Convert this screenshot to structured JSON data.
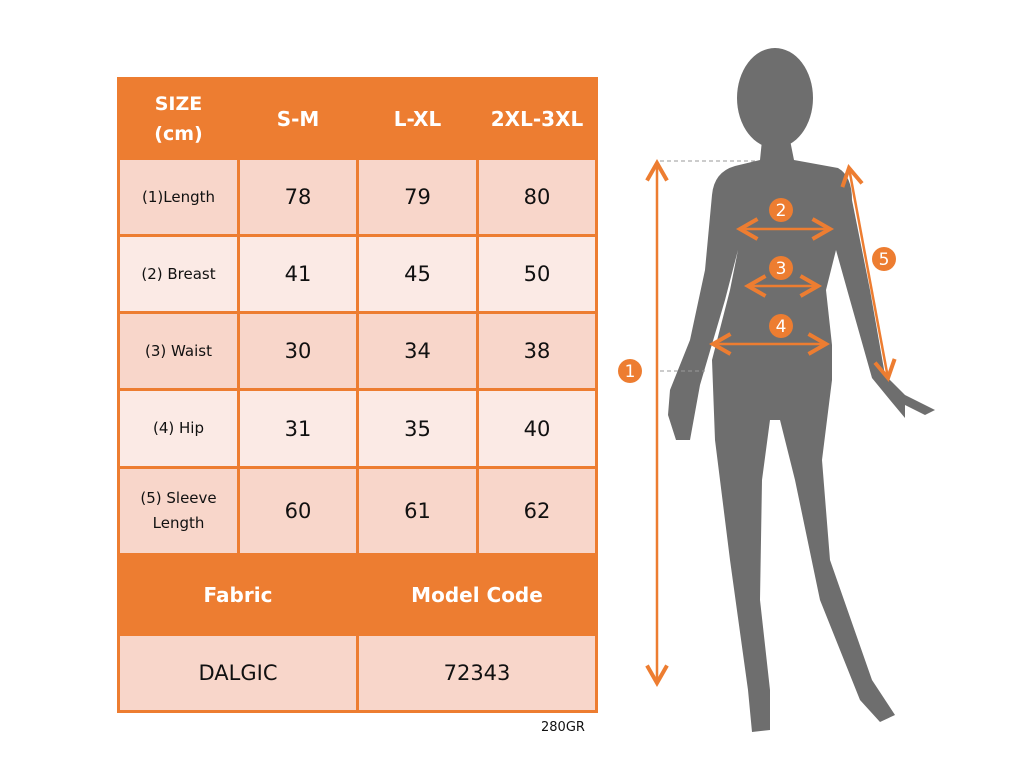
{
  "size_table": {
    "header": [
      "SIZE\n(cm)",
      "S-M",
      "L-XL",
      "2XL-3XL"
    ],
    "header_size_line1": "SIZE",
    "header_size_line2": "(cm)",
    "rows": [
      {
        "label": "(1)Length",
        "values": [
          "78",
          "79",
          "80"
        ]
      },
      {
        "label": "(2) Breast",
        "values": [
          "41",
          "45",
          "50"
        ]
      },
      {
        "label": "(3) Waist",
        "values": [
          "30",
          "34",
          "38"
        ]
      },
      {
        "label": "(4) Hip",
        "values": [
          "31",
          "35",
          "40"
        ]
      },
      {
        "label": "(5) Sleeve Length",
        "values": [
          "60",
          "61",
          "62"
        ]
      }
    ],
    "fabric_label": "Fabric",
    "model_code_label": "Model Code",
    "fabric_value": "DALGIC",
    "model_code_value": "72343"
  },
  "note": "280GR",
  "figure": {
    "markers": [
      "1",
      "2",
      "3",
      "4",
      "5"
    ],
    "accent_color": "#ED7D31",
    "silhouette_color": "#6E6E6E"
  }
}
